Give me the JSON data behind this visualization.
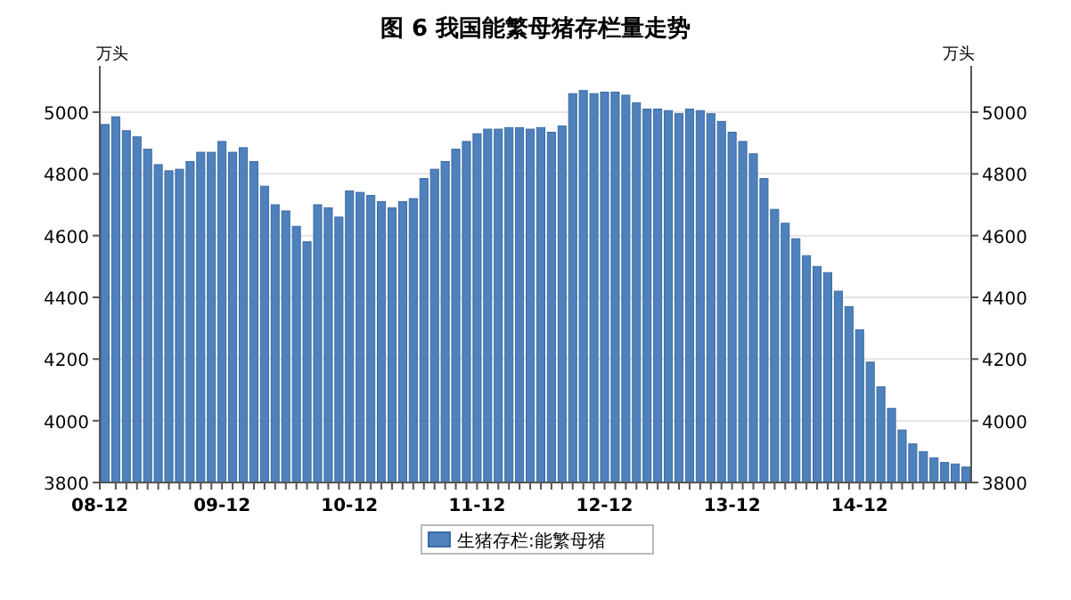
{
  "chart_data": {
    "type": "bar",
    "title": "图 6  我国能繁母猪存栏量走势",
    "ylabel": "万头",
    "y2label": "万头",
    "categories": [
      "08-12",
      null,
      null,
      null,
      null,
      null,
      null,
      null,
      null,
      null,
      null,
      "09-12",
      null,
      null,
      null,
      null,
      null,
      null,
      null,
      null,
      null,
      null,
      null,
      "10-12",
      null,
      null,
      null,
      null,
      null,
      null,
      null,
      null,
      null,
      null,
      null,
      "11-12",
      null,
      null,
      null,
      null,
      null,
      null,
      null,
      null,
      null,
      null,
      null,
      "12-12",
      null,
      null,
      null,
      null,
      null,
      null,
      null,
      null,
      null,
      null,
      null,
      "13-12",
      null,
      null,
      null,
      null,
      null,
      null,
      null,
      null,
      null,
      null,
      null,
      "14-12",
      null,
      null,
      null,
      null,
      null,
      null,
      null,
      null,
      null,
      null
    ],
    "series": [
      {
        "name": "生猪存栏:能繁母猪",
        "color": "#4f81bd",
        "values": [
          4960,
          4985,
          4940,
          4920,
          4880,
          4830,
          4810,
          4815,
          4840,
          4870,
          4870,
          4905,
          4870,
          4885,
          4840,
          4760,
          4700,
          4680,
          4630,
          4580,
          4700,
          4690,
          4660,
          4745,
          4740,
          4730,
          4710,
          4690,
          4710,
          4720,
          4785,
          4815,
          4840,
          4880,
          4905,
          4930,
          4945,
          4945,
          4950,
          4950,
          4945,
          4950,
          4935,
          4955,
          5060,
          5070,
          5060,
          5065,
          5065,
          5055,
          5030,
          5010,
          5010,
          5005,
          4995,
          5010,
          5005,
          4995,
          4970,
          4935,
          4905,
          4865,
          4785,
          4685,
          4640,
          4590,
          4535,
          4500,
          4480,
          4420,
          4370,
          4295,
          4190,
          4110,
          4040,
          3970,
          3925,
          3900,
          3880,
          3865,
          3860,
          3850
        ]
      }
    ],
    "ylim": [
      3800,
      5150
    ],
    "yticks": [
      3800,
      4000,
      4200,
      4400,
      4600,
      4800,
      5000
    ],
    "y2lim": [
      3800,
      5150
    ],
    "y2ticks": [
      3800,
      4000,
      4200,
      4400,
      4600,
      4800,
      5000
    ],
    "grid": "y",
    "legend": "bottom"
  }
}
